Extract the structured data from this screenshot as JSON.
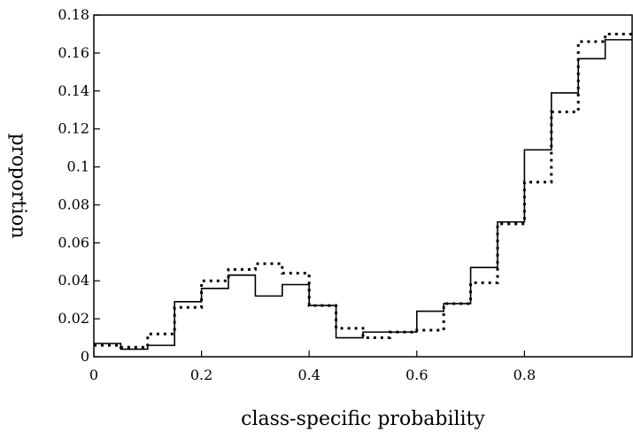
{
  "chart_data": {
    "type": "line",
    "title": "",
    "xlabel": "class-specific probability",
    "ylabel": "proportion",
    "xlim": [
      0,
      1
    ],
    "ylim": [
      0,
      0.18
    ],
    "x_ticks": [
      0,
      0.2,
      0.4,
      0.6,
      0.8
    ],
    "x_tick_labels": [
      "0",
      "0.2",
      "0.4",
      "0.6",
      "0.8"
    ],
    "y_ticks": [
      0,
      0.02,
      0.04,
      0.06,
      0.08,
      0.1,
      0.12,
      0.14,
      0.16,
      0.18
    ],
    "y_tick_labels": [
      "0",
      "0.02",
      "0.04",
      "0.06",
      "0.08",
      "0.1",
      "0.12",
      "0.14",
      "0.16",
      "0.18"
    ],
    "bin_edges": [
      0,
      0.05,
      0.1,
      0.15,
      0.2,
      0.25,
      0.3,
      0.35,
      0.4,
      0.45,
      0.5,
      0.55,
      0.6,
      0.65,
      0.7,
      0.75,
      0.8,
      0.85,
      0.9,
      0.95,
      1.0
    ],
    "grid": false,
    "series": [
      {
        "style": "solid",
        "color": "#000000",
        "values": [
          0.007,
          0.004,
          0.006,
          0.029,
          0.036,
          0.043,
          0.032,
          0.038,
          0.027,
          0.01,
          0.013,
          0.013,
          0.024,
          0.028,
          0.047,
          0.071,
          0.109,
          0.139,
          0.157,
          0.167
        ]
      },
      {
        "style": "dotted",
        "color": "#000000",
        "values": [
          0.006,
          0.005,
          0.012,
          0.026,
          0.04,
          0.046,
          0.049,
          0.044,
          0.027,
          0.015,
          0.01,
          0.013,
          0.014,
          0.028,
          0.039,
          0.07,
          0.092,
          0.129,
          0.166,
          0.17
        ]
      }
    ]
  }
}
